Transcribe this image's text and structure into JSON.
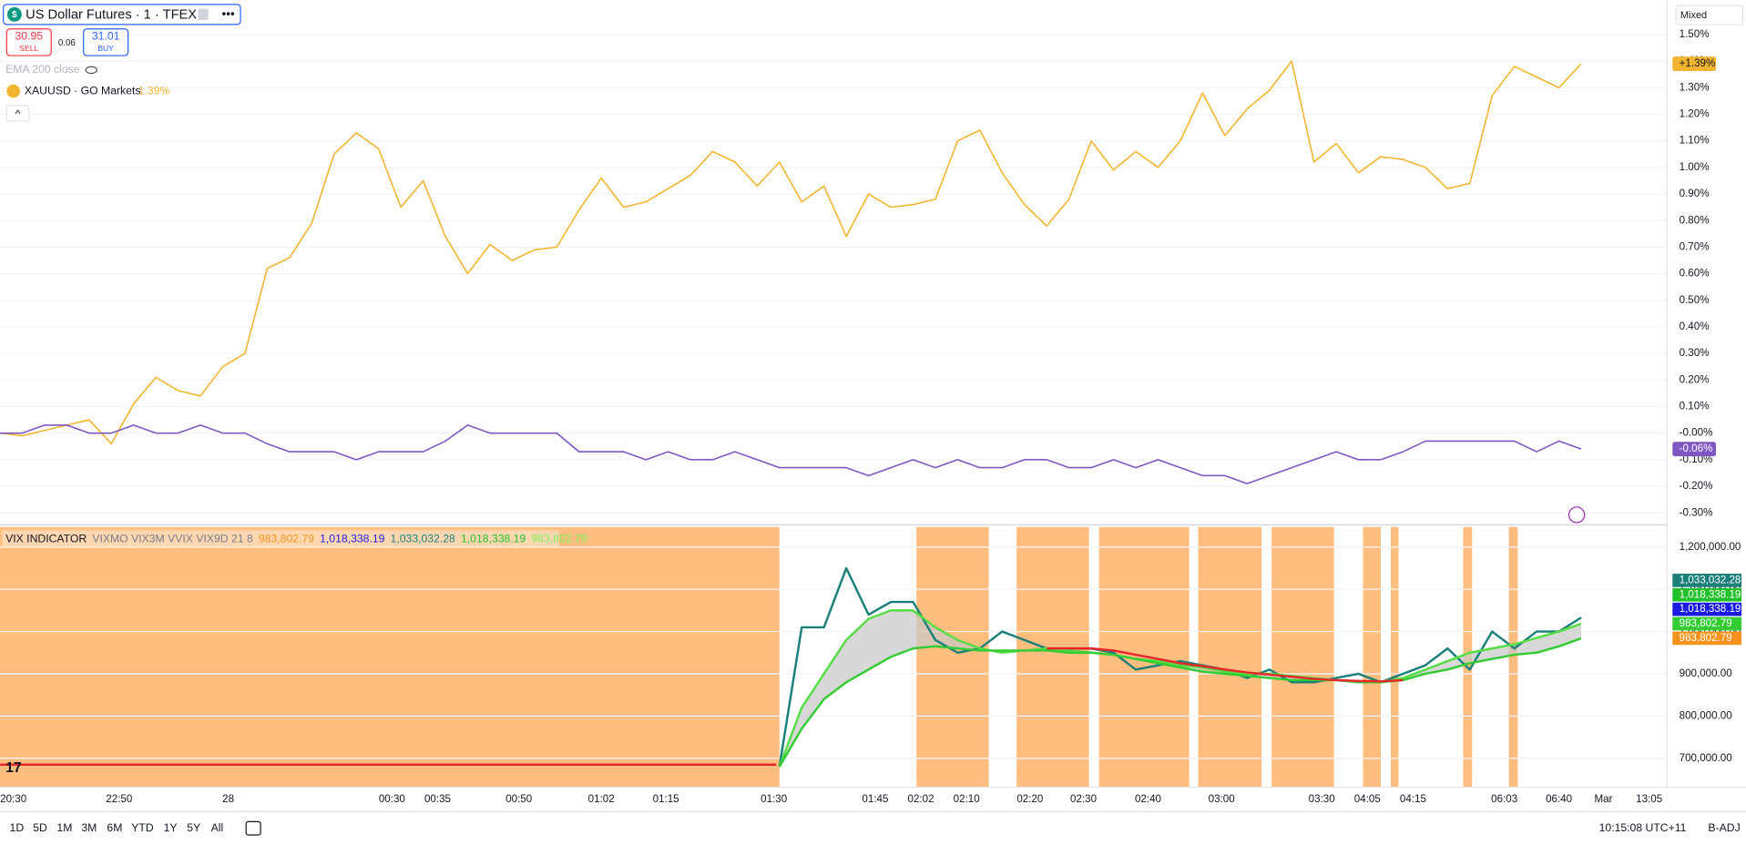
{
  "header": {
    "symbol": "US Dollar Futures · 1 · TFEX",
    "sell_price": "30.95",
    "sell": "SELL",
    "spread": "0.06",
    "buy_price": "31.01",
    "buy": "BUY",
    "ema": "EMA 200 close",
    "scale_mode": "Mixed"
  },
  "chart_data": [
    {
      "type": "line",
      "ylim": [
        -0.345,
        1.63
      ],
      "yticks": [
        {
          "value": 1.5,
          "label": "1.50%"
        },
        {
          "value": 1.4,
          "label": "1.40%"
        },
        {
          "value": 1.3,
          "label": "1.30%"
        },
        {
          "value": 1.2,
          "label": "1.20%"
        },
        {
          "value": 1.1,
          "label": "1.10%"
        },
        {
          "value": 1.0,
          "label": "1.00%"
        },
        {
          "value": 0.9,
          "label": "0.90%"
        },
        {
          "value": 0.8,
          "label": "0.80%"
        },
        {
          "value": 0.7,
          "label": "0.70%"
        },
        {
          "value": 0.6,
          "label": "0.60%"
        },
        {
          "value": 0.5,
          "label": "0.50%"
        },
        {
          "value": 0.4,
          "label": "0.40%"
        },
        {
          "value": 0.3,
          "label": "0.30%"
        },
        {
          "value": 0.2,
          "label": "0.20%"
        },
        {
          "value": 0.1,
          "label": "0.10%"
        },
        {
          "value": 0,
          "label": "-0.00%"
        },
        {
          "value": -0.1,
          "label": "-0.10%"
        },
        {
          "value": -0.2,
          "label": "-0.20%"
        },
        {
          "value": -0.3,
          "label": "-0.30%"
        }
      ],
      "series": [
        {
          "name": "XAUUSD · GO Markets",
          "legend_change": "1.39%",
          "last_label": "+1.39%",
          "color": "#f2b531",
          "values": [
            0,
            -0.01,
            0.01,
            0.03,
            0.05,
            -0.04,
            0.11,
            0.21,
            0.16,
            0.14,
            0.25,
            0.3,
            0.62,
            0.66,
            0.79,
            1.05,
            1.13,
            1.07,
            0.85,
            0.95,
            0.74,
            0.6,
            0.71,
            0.65,
            0.69,
            0.7,
            0.84,
            0.96,
            0.85,
            0.87,
            0.92,
            0.97,
            1.06,
            1.02,
            0.93,
            1.02,
            0.87,
            0.93,
            0.74,
            0.9,
            0.85,
            0.86,
            0.88,
            1.1,
            1.14,
            0.98,
            0.86,
            0.78,
            0.88,
            1.1,
            0.99,
            1.06,
            1,
            1.1,
            1.28,
            1.12,
            1.22,
            1.29,
            1.4,
            1.02,
            1.09,
            0.98,
            1.04,
            1.03,
            1,
            0.92,
            0.94,
            1.27,
            1.38,
            1.34,
            1.3,
            1.39
          ]
        },
        {
          "last_label": "-0.06%",
          "color": "#7e57c2",
          "values": [
            0,
            0,
            0.03,
            0.03,
            0,
            0,
            0.03,
            0,
            0,
            0.03,
            0,
            0,
            -0.04,
            -0.07,
            -0.07,
            -0.07,
            -0.1,
            -0.07,
            -0.07,
            -0.07,
            -0.03,
            0.03,
            0,
            0,
            0,
            0,
            -0.07,
            -0.07,
            -0.07,
            -0.1,
            -0.07,
            -0.1,
            -0.1,
            -0.07,
            -0.1,
            -0.13,
            -0.13,
            -0.13,
            -0.13,
            -0.16,
            -0.13,
            -0.1,
            -0.13,
            -0.1,
            -0.13,
            -0.13,
            -0.1,
            -0.1,
            -0.13,
            -0.13,
            -0.1,
            -0.13,
            -0.1,
            -0.13,
            -0.16,
            -0.16,
            -0.19,
            -0.16,
            -0.13,
            -0.1,
            -0.07,
            -0.1,
            -0.1,
            -0.07,
            -0.03,
            -0.03,
            -0.03,
            -0.03,
            -0.03,
            -0.07,
            -0.03,
            -0.06
          ]
        }
      ]
    },
    {
      "type": "line",
      "ylim": [
        631600,
        1247400
      ],
      "indicator_name": "VIX INDICATOR",
      "indicator_params": "VIXMO VIX3M VVIX VIX9D 21 8",
      "indicator_values": [
        {
          "text": "983,802.79",
          "color": "#f7931a"
        },
        {
          "text": "1,018,338.19",
          "color": "#1a1ae0"
        },
        {
          "text": "1,033,032.28",
          "color": "#1b7f79"
        },
        {
          "text": "1,018,338.19",
          "color": "#22c02a"
        },
        {
          "text": "983,802.79",
          "color": "#7cf25a"
        }
      ],
      "axis_badges": [
        {
          "text": "1,033,032.28",
          "color": "#1b7f79"
        },
        {
          "text": "1,018,338.19",
          "color": "#22c02a"
        },
        {
          "text": "1,018,338.19",
          "color": "#1a1ae0"
        },
        {
          "text": "983,802.79",
          "color": "#33cc33"
        },
        {
          "text": "983,802.79",
          "color": "#f7931a"
        }
      ],
      "yticks": [
        {
          "value": 1200000,
          "label": "1,200,000.00"
        },
        {
          "value": 1100000,
          "label": "1,100,000.00"
        },
        {
          "value": 1000000,
          "label": "1,000,000.00"
        },
        {
          "value": 900000,
          "label": "900,000.00"
        },
        {
          "value": 800000,
          "label": "800,000.00"
        },
        {
          "value": 700000,
          "label": "700,000.00"
        }
      ],
      "baseline": 685000,
      "baseline_color": "#e8262a",
      "series": [
        {
          "color": "#1b7f79",
          "values": [
            680000,
            1010000,
            1010000,
            1150000,
            1040000,
            1070000,
            1070000,
            980000,
            950000,
            960000,
            1000000,
            980000,
            960000,
            960000,
            960000,
            950000,
            910000,
            920000,
            930000,
            920000,
            910000,
            890000,
            910000,
            880000,
            880000,
            890000,
            900000,
            880000,
            900000,
            920000,
            960000,
            910000,
            1000000,
            960000,
            1000000,
            1000000,
            1033032.28
          ]
        },
        {
          "color": "#55dd44",
          "values": [
            680000,
            820000,
            900000,
            980000,
            1030000,
            1050000,
            1050000,
            1010000,
            980000,
            960000,
            950000,
            955000,
            960000,
            955000,
            950000,
            945000,
            935000,
            930000,
            920000,
            915000,
            905000,
            900000,
            900000,
            895000,
            890000,
            885000,
            880000,
            880000,
            890000,
            910000,
            930000,
            950000,
            960000,
            970000,
            985000,
            1000000,
            1018338.19
          ]
        },
        {
          "color": "#33cc33",
          "values": [
            680000,
            770000,
            840000,
            880000,
            910000,
            940000,
            960000,
            965000,
            960000,
            955000,
            955000,
            955000,
            955000,
            950000,
            950000,
            945000,
            935000,
            925000,
            915000,
            905000,
            900000,
            895000,
            890000,
            885000,
            885000,
            885000,
            880000,
            880000,
            885000,
            900000,
            910000,
            925000,
            935000,
            945000,
            950000,
            965000,
            983802.79
          ]
        },
        {
          "color": "#e8262a",
          "values": [
            null,
            null,
            null,
            null,
            null,
            null,
            null,
            null,
            null,
            null,
            null,
            null,
            960000,
            960000,
            960000,
            955000,
            945000,
            935000,
            925000,
            918000,
            910000,
            903000,
            898000,
            893000,
            888000,
            885000,
            883000,
            882000,
            885000,
            null,
            null,
            null,
            null,
            null,
            null,
            null,
            null
          ]
        }
      ]
    }
  ],
  "time_axis": [
    "20:30",
    "22:50",
    "28",
    "00:30",
    "00:35",
    "00:50",
    "01:02",
    "01:15",
    "01:30",
    "01:45",
    "02:02",
    "02:10",
    "02:20",
    "02:30",
    "02:40",
    "03:00",
    "03:30",
    "04:05",
    "04:15",
    "06:03",
    "06:40",
    "Mar",
    "13:05"
  ],
  "toolbar": {
    "ranges": [
      "1D",
      "5D",
      "1M",
      "3M",
      "6M",
      "YTD",
      "1Y",
      "5Y",
      "All"
    ],
    "clock": "10:15:08 UTC+11",
    "adjust": "B-ADJ"
  }
}
